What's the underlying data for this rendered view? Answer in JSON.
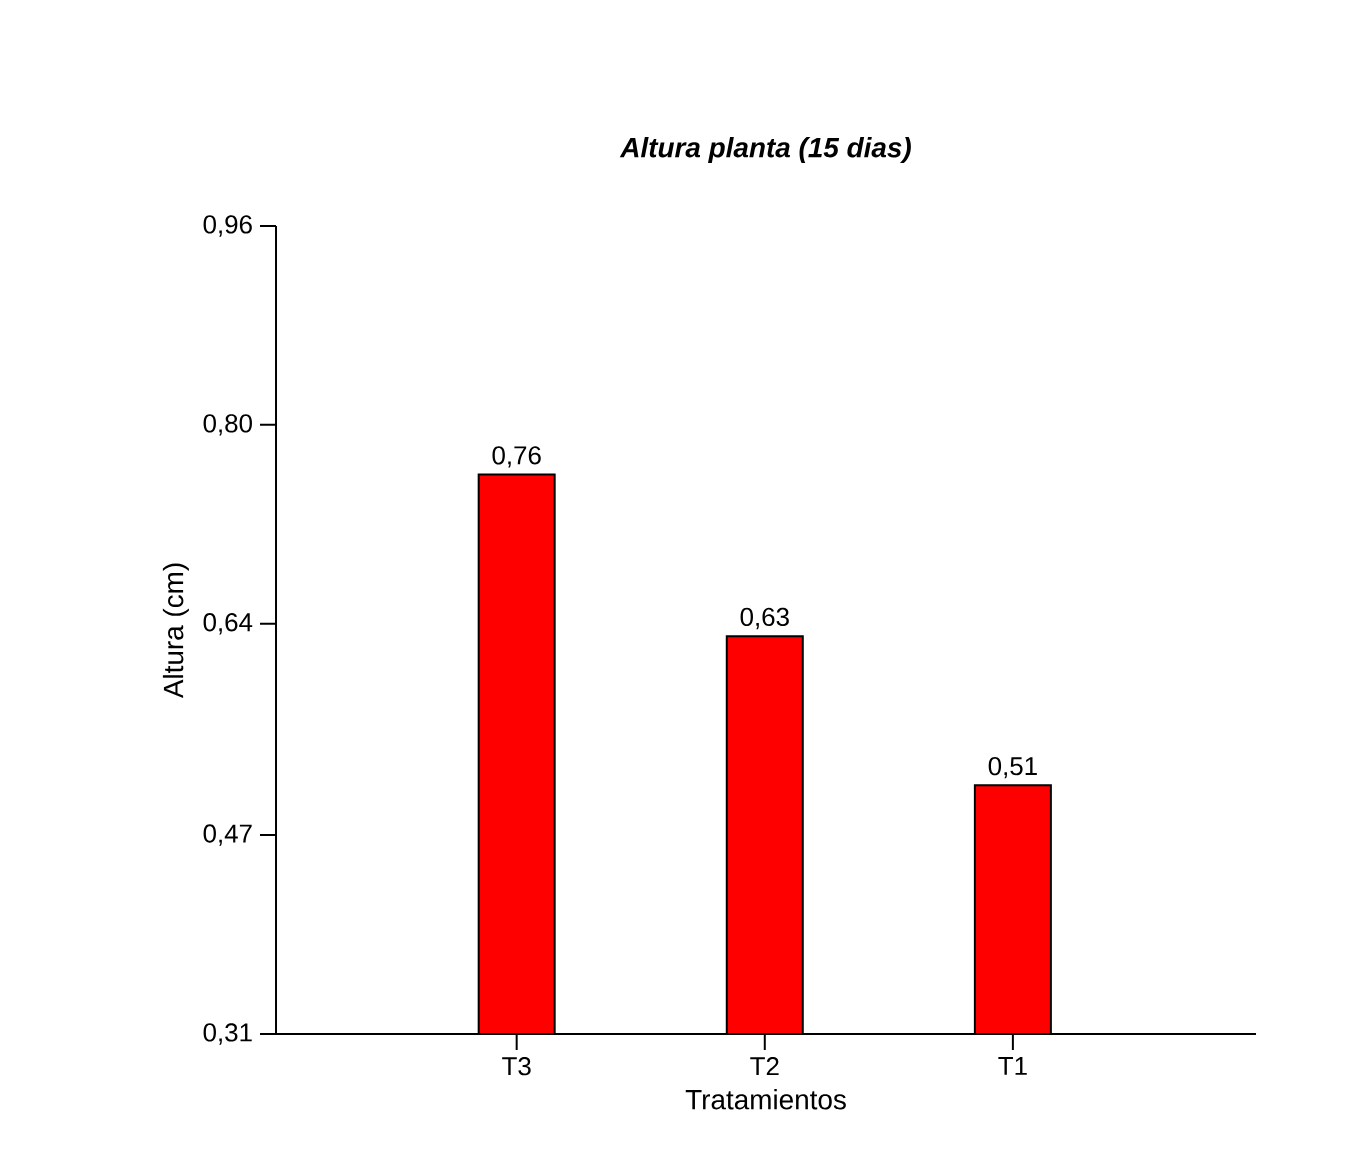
{
  "chart_data": {
    "type": "bar",
    "title": "Altura planta (15 dias)",
    "xlabel": "Tratamientos",
    "ylabel": "Altura (cm)",
    "categories": [
      "T3",
      "T2",
      "T1"
    ],
    "values": [
      0.76,
      0.63,
      0.51
    ],
    "value_labels": [
      "0,76",
      "0,63",
      "0,51"
    ],
    "color": "#ff0000",
    "ylim": [
      0.31,
      0.96
    ],
    "yticks": [
      {
        "value": 0.31,
        "label": "0,31"
      },
      {
        "value": 0.47,
        "label": "0,47"
      },
      {
        "value": 0.64,
        "label": "0,64"
      },
      {
        "value": 0.8,
        "label": "0,80"
      },
      {
        "value": 0.96,
        "label": "0,96"
      }
    ],
    "grid": false
  }
}
